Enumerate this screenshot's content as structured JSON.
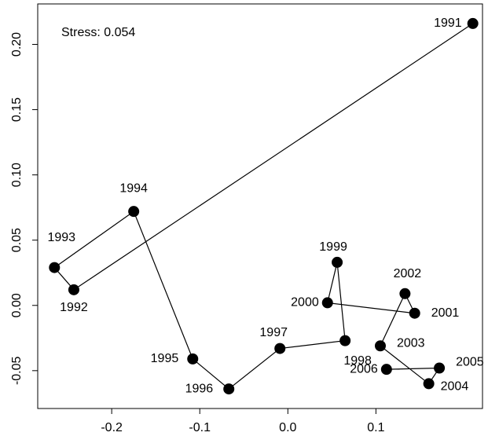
{
  "chart_data": {
    "type": "scatter",
    "annotation": "Stress: 0.054",
    "labels": [
      "1991",
      "1992",
      "1993",
      "1994",
      "1995",
      "1996",
      "1997",
      "1998",
      "1999",
      "2000",
      "2001",
      "2002",
      "2003",
      "2004",
      "2005",
      "2006"
    ],
    "x": [
      0.21,
      -0.243,
      -0.265,
      -0.175,
      -0.108,
      -0.067,
      -0.009,
      0.065,
      0.056,
      0.045,
      0.144,
      0.133,
      0.105,
      0.16,
      0.172,
      0.112
    ],
    "y": [
      0.216,
      0.012,
      0.029,
      0.072,
      -0.041,
      -0.064,
      -0.033,
      -0.027,
      0.033,
      0.002,
      -0.006,
      0.009,
      -0.031,
      -0.06,
      -0.048,
      -0.049
    ],
    "color": "#000000",
    "xlim": [
      -0.284,
      0.221
    ],
    "ylim": [
      -0.079,
      0.231
    ],
    "xticks": [
      -0.2,
      -0.1,
      {
        "value": 0,
        "label": "0.0"
      },
      0.1
    ],
    "yticks": [
      -0.05,
      {
        "value": 0,
        "label": "0.00"
      },
      0.05,
      {
        "value": 0.1,
        "label": "0.10"
      },
      0.15,
      {
        "value": 0.2,
        "label": "0.20"
      }
    ]
  }
}
